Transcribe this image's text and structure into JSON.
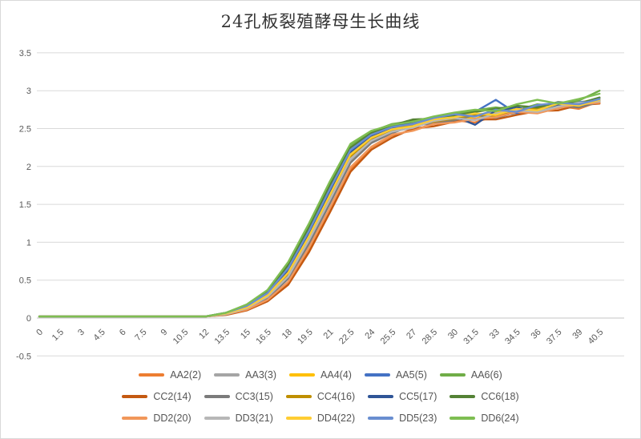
{
  "chart_data": {
    "type": "line",
    "title": "24孔板裂殖酵母生长曲线",
    "xlabel": "",
    "ylabel": "",
    "x": [
      0,
      1.5,
      3,
      4.5,
      6,
      7.5,
      9,
      10.5,
      12,
      13.5,
      15,
      16.5,
      18,
      19.5,
      21,
      22.5,
      24,
      25.5,
      27,
      28.5,
      30,
      31.5,
      33,
      34.5,
      36,
      37.5,
      39,
      40.5
    ],
    "x_tick_labels": [
      "0",
      "1.5",
      "3",
      "4.5",
      "6",
      "7.5",
      "9",
      "10.5",
      "12",
      "13.5",
      "15",
      "16.5",
      "18",
      "19.5",
      "21",
      "22.5",
      "24",
      "25.5",
      "27",
      "28.5",
      "30",
      "31.5",
      "33",
      "34.5",
      "36",
      "37.5",
      "39",
      "40.5"
    ],
    "y_ticks": [
      -0.5,
      0,
      0.5,
      1,
      1.5,
      2,
      2.5,
      3,
      3.5
    ],
    "y_tick_labels": [
      "-0.5",
      "0",
      "0.5",
      "1",
      "1.5",
      "2",
      "2.5",
      "3",
      "3.5"
    ],
    "ylim": [
      -0.5,
      3.5
    ],
    "grid": "horizontal",
    "gridline_color": "#d9d9d9",
    "axis_text_color": "#595959",
    "legend_position": "bottom",
    "legend_rows": 3,
    "series": [
      {
        "name": "AA2(2)",
        "color": "#ED7D31",
        "values": [
          0.02,
          0.02,
          0.02,
          0.02,
          0.02,
          0.02,
          0.02,
          0.02,
          0.02,
          0.05,
          0.11,
          0.23,
          0.46,
          0.9,
          1.42,
          1.96,
          2.25,
          2.41,
          2.48,
          2.56,
          2.61,
          2.58,
          2.67,
          2.71,
          2.74,
          2.8,
          2.76,
          2.86
        ]
      },
      {
        "name": "AA3(3)",
        "color": "#A5A5A5",
        "values": [
          0.02,
          0.02,
          0.02,
          0.02,
          0.02,
          0.02,
          0.02,
          0.02,
          0.02,
          0.05,
          0.13,
          0.27,
          0.54,
          1.01,
          1.54,
          2.08,
          2.33,
          2.47,
          2.52,
          2.59,
          2.63,
          2.66,
          2.73,
          2.68,
          2.76,
          2.77,
          2.83,
          2.87
        ]
      },
      {
        "name": "AA4(4)",
        "color": "#FFC000",
        "values": [
          0.02,
          0.02,
          0.02,
          0.02,
          0.02,
          0.02,
          0.02,
          0.02,
          0.02,
          0.06,
          0.14,
          0.29,
          0.58,
          1.06,
          1.6,
          2.14,
          2.37,
          2.5,
          2.54,
          2.61,
          2.66,
          2.63,
          2.71,
          2.75,
          2.72,
          2.81,
          2.84,
          2.9
        ]
      },
      {
        "name": "AA5(5)",
        "color": "#4472C4",
        "values": [
          0.02,
          0.02,
          0.02,
          0.02,
          0.02,
          0.02,
          0.02,
          0.02,
          0.02,
          0.06,
          0.15,
          0.32,
          0.64,
          1.13,
          1.68,
          2.2,
          2.41,
          2.53,
          2.57,
          2.63,
          2.67,
          2.72,
          2.88,
          2.7,
          2.79,
          2.77,
          2.85,
          2.87
        ]
      },
      {
        "name": "AA6(6)",
        "color": "#70AD47",
        "values": [
          0.02,
          0.02,
          0.02,
          0.02,
          0.02,
          0.02,
          0.02,
          0.02,
          0.02,
          0.07,
          0.17,
          0.36,
          0.72,
          1.22,
          1.78,
          2.28,
          2.46,
          2.56,
          2.6,
          2.65,
          2.69,
          2.74,
          2.78,
          2.74,
          2.82,
          2.8,
          2.87,
          3.0
        ]
      },
      {
        "name": "CC2(14)",
        "color": "#C45911",
        "values": [
          0.02,
          0.02,
          0.02,
          0.02,
          0.02,
          0.02,
          0.02,
          0.02,
          0.02,
          0.04,
          0.1,
          0.22,
          0.44,
          0.87,
          1.39,
          1.93,
          2.22,
          2.38,
          2.5,
          2.53,
          2.59,
          2.62,
          2.62,
          2.68,
          2.73,
          2.74,
          2.81,
          2.83
        ]
      },
      {
        "name": "CC3(15)",
        "color": "#7B7B7B",
        "values": [
          0.02,
          0.02,
          0.02,
          0.02,
          0.02,
          0.02,
          0.02,
          0.02,
          0.02,
          0.05,
          0.12,
          0.26,
          0.52,
          0.98,
          1.51,
          2.05,
          2.31,
          2.44,
          2.54,
          2.57,
          2.61,
          2.68,
          2.64,
          2.72,
          2.74,
          2.8,
          2.78,
          2.85
        ]
      },
      {
        "name": "CC4(16)",
        "color": "#BF8F00",
        "values": [
          0.02,
          0.02,
          0.02,
          0.02,
          0.02,
          0.02,
          0.02,
          0.02,
          0.02,
          0.06,
          0.14,
          0.28,
          0.57,
          1.04,
          1.58,
          2.12,
          2.35,
          2.48,
          2.56,
          2.59,
          2.63,
          2.69,
          2.66,
          2.73,
          2.77,
          2.78,
          2.82,
          2.86
        ]
      },
      {
        "name": "CC5(17)",
        "color": "#2F5597",
        "values": [
          0.02,
          0.02,
          0.02,
          0.02,
          0.02,
          0.02,
          0.02,
          0.02,
          0.02,
          0.06,
          0.15,
          0.31,
          0.62,
          1.11,
          1.65,
          2.18,
          2.39,
          2.51,
          2.59,
          2.61,
          2.66,
          2.55,
          2.74,
          2.78,
          2.72,
          2.82,
          2.8,
          2.88
        ]
      },
      {
        "name": "CC6(18)",
        "color": "#548235",
        "values": [
          0.02,
          0.02,
          0.02,
          0.02,
          0.02,
          0.02,
          0.02,
          0.02,
          0.02,
          0.07,
          0.16,
          0.35,
          0.7,
          1.19,
          1.75,
          2.25,
          2.44,
          2.54,
          2.62,
          2.63,
          2.67,
          2.72,
          2.76,
          2.8,
          2.78,
          2.85,
          2.83,
          2.91
        ]
      },
      {
        "name": "DD2(20)",
        "color": "#F1975A",
        "values": [
          0.02,
          0.02,
          0.02,
          0.02,
          0.02,
          0.02,
          0.02,
          0.02,
          0.02,
          0.05,
          0.11,
          0.24,
          0.48,
          0.93,
          1.45,
          1.99,
          2.26,
          2.42,
          2.47,
          2.56,
          2.58,
          2.63,
          2.65,
          2.72,
          2.7,
          2.77,
          2.82,
          2.84
        ]
      },
      {
        "name": "DD3(21)",
        "color": "#B7B7B7",
        "values": [
          0.02,
          0.02,
          0.02,
          0.02,
          0.02,
          0.02,
          0.02,
          0.02,
          0.02,
          0.05,
          0.13,
          0.28,
          0.55,
          1.03,
          1.56,
          2.1,
          2.34,
          2.46,
          2.51,
          2.6,
          2.64,
          2.61,
          2.7,
          2.74,
          2.72,
          2.79,
          2.84,
          2.86
        ]
      },
      {
        "name": "DD4(22)",
        "color": "#FFCD33",
        "values": [
          0.02,
          0.02,
          0.02,
          0.02,
          0.02,
          0.02,
          0.02,
          0.02,
          0.02,
          0.06,
          0.14,
          0.3,
          0.6,
          1.08,
          1.62,
          2.16,
          2.38,
          2.49,
          2.53,
          2.62,
          2.65,
          2.7,
          2.68,
          2.76,
          2.74,
          2.83,
          2.8,
          2.88
        ]
      },
      {
        "name": "DD5(23)",
        "color": "#698ED0",
        "values": [
          0.02,
          0.02,
          0.02,
          0.02,
          0.02,
          0.02,
          0.02,
          0.02,
          0.02,
          0.07,
          0.16,
          0.33,
          0.66,
          1.15,
          1.7,
          2.22,
          2.42,
          2.52,
          2.56,
          2.64,
          2.69,
          2.66,
          2.75,
          2.72,
          2.81,
          2.84,
          2.82,
          2.89
        ]
      },
      {
        "name": "DD6(24)",
        "color": "#7EBE52",
        "values": [
          0.02,
          0.02,
          0.02,
          0.02,
          0.02,
          0.02,
          0.02,
          0.02,
          0.02,
          0.07,
          0.18,
          0.37,
          0.74,
          1.25,
          1.8,
          2.3,
          2.47,
          2.55,
          2.59,
          2.66,
          2.71,
          2.75,
          2.73,
          2.82,
          2.88,
          2.83,
          2.89,
          2.96
        ]
      }
    ]
  }
}
